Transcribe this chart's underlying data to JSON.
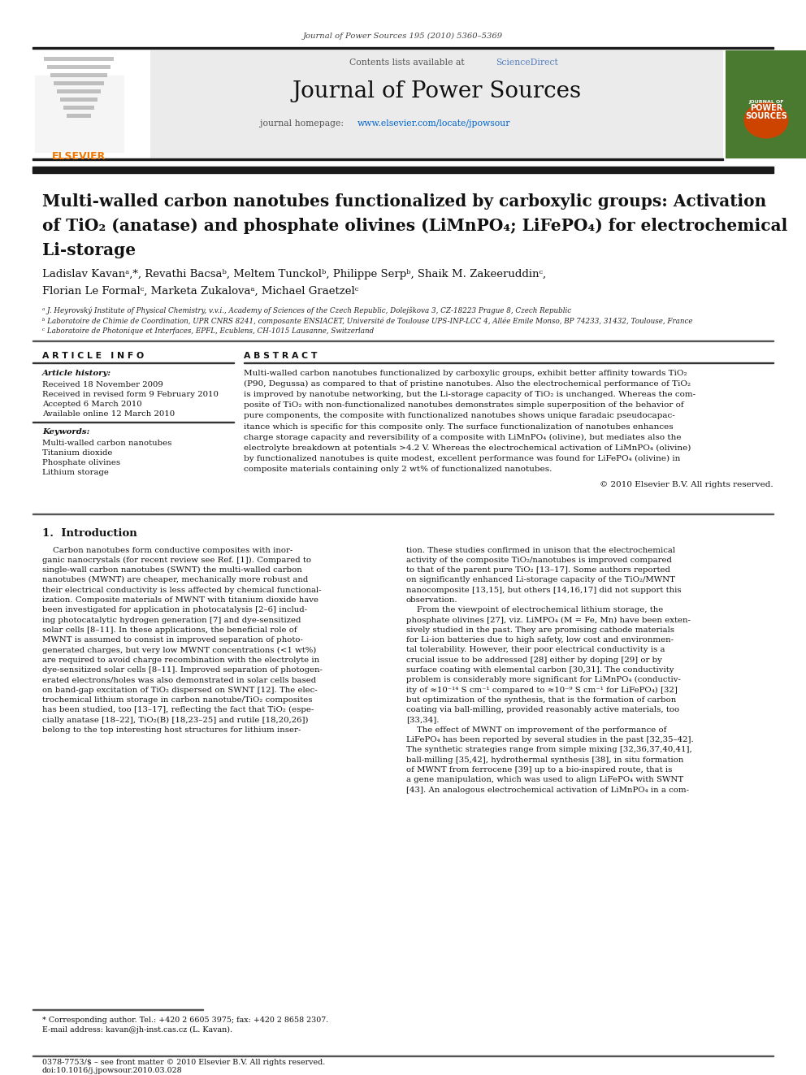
{
  "journal_ref": "Journal of Power Sources 195 (2010) 5360–5369",
  "contents_line": "Contents lists available at",
  "sciencedirect": "ScienceDirect",
  "journal_name": "Journal of Power Sources",
  "journal_homepage_prefix": "journal homepage: ",
  "journal_homepage_url": "www.elsevier.com/locate/jpowsour",
  "title_line1": "Multi-walled carbon nanotubes functionalized by carboxylic groups: Activation",
  "title_line2": "of TiO₂ (anatase) and phosphate olivines (LiMnPO₄; LiFePO₄) for electrochemical",
  "title_line3": "Li-storage",
  "authors": "Ladislav Kavanᵃ,*, Revathi Bacsaᵇ, Meltem Tunckolᵇ, Philippe Serpᵇ, Shaik M. Zakeeruddinᶜ,",
  "authors2": "Florian Le Formalᶜ, Marketa Zukalovaᵃ, Michael Graetzelᶜ",
  "affil_a": "ᵃ J. Heyrovský Institute of Physical Chemistry, v.v.i., Academy of Sciences of the Czech Republic, Dolejškova 3, CZ-18223 Prague 8, Czech Republic",
  "affil_b": "ᵇ Laboratoire de Chimie de Coordination, UPR CNRS 8241, composante ENSIACET, Université de Toulouse UPS-INP-LCC 4, Allée Emile Monso, BP 74233, 31432, Toulouse, France",
  "affil_c": "ᶜ Laboratoire de Photonique et Interfaces, EPFL, Ecublens, CH-1015 Lausanne, Switzerland",
  "article_info_header": "A R T I C L E   I N F O",
  "abstract_header": "A B S T R A C T",
  "article_history_label": "Article history:",
  "received": "Received 18 November 2009",
  "received_revised": "Received in revised form 9 February 2010",
  "accepted": "Accepted 6 March 2010",
  "available": "Available online 12 March 2010",
  "keywords_label": "Keywords:",
  "kw1": "Multi-walled carbon nanotubes",
  "kw2": "Titanium dioxide",
  "kw3": "Phosphate olivines",
  "kw4": "Lithium storage",
  "abstract_text": "Multi-walled carbon nanotubes functionalized by carboxylic groups, exhibit better affinity towards TiO₂\n(P90, Degussa) as compared to that of pristine nanotubes. Also the electrochemical performance of TiO₂\nis improved by nanotube networking, but the Li-storage capacity of TiO₂ is unchanged. Whereas the com-\nposite of TiO₂ with non-functionalized nanotubes demonstrates simple superposition of the behavior of\npure components, the composite with functionalized nanotubes shows unique faradaic pseudocapac-\nitance which is specific for this composite only. The surface functionalization of nanotubes enhances\ncharge storage capacity and reversibility of a composite with LiMnPO₄ (olivine), but mediates also the\nelectrolyte breakdown at potentials >4.2 V. Whereas the electrochemical activation of LiMnPO₄ (olivine)\nby functionalized nanotubes is quite modest, excellent performance was found for LiFePO₄ (olivine) in\ncomposite materials containing only 2 wt% of functionalized nanotubes.",
  "copyright": "© 2010 Elsevier B.V. All rights reserved.",
  "intro_header": "1.  Introduction",
  "intro_col1": "    Carbon nanotubes form conductive composites with inor-\nganic nanocrystals (for recent review see Ref. [1]). Compared to\nsingle-wall carbon nanotubes (SWNT) the multi-walled carbon\nnanotubes (MWNT) are cheaper, mechanically more robust and\ntheir electrical conductivity is less affected by chemical functional-\nization. Composite materials of MWNT with titanium dioxide have\nbeen investigated for application in photocatalysis [2–6] includ-\ning photocatalytic hydrogen generation [7] and dye-sensitized\nsolar cells [8–11]. In these applications, the beneficial role of\nMWNT is assumed to consist in improved separation of photo-\ngenerated charges, but very low MWNT concentrations (<1 wt%)\nare required to avoid charge recombination with the electrolyte in\ndye-sensitized solar cells [8–11]. Improved separation of photogen-\nerated electrons/holes was also demonstrated in solar cells based\non band-gap excitation of TiO₂ dispersed on SWNT [12]. The elec-\ntrochemical lithium storage in carbon nanotube/TiO₂ composites\nhas been studied, too [13–17], reflecting the fact that TiO₂ (espe-\ncially anatase [18–22], TiO₂(B) [18,23–25] and rutile [18,20,26])\nbelong to the top interesting host structures for lithium inser-",
  "intro_col2": "tion. These studies confirmed in unison that the electrochemical\nactivity of the composite TiO₂/nanotubes is improved compared\nto that of the parent pure TiO₂ [13–17]. Some authors reported\non significantly enhanced Li-storage capacity of the TiO₂/MWNT\nnanocomposite [13,15], but others [14,16,17] did not support this\nobservation.\n    From the viewpoint of electrochemical lithium storage, the\nphosphate olivines [27], viz. LiMPO₄ (M = Fe, Mn) have been exten-\nsively studied in the past. They are promising cathode materials\nfor Li-ion batteries due to high safety, low cost and environmen-\ntal tolerability. However, their poor electrical conductivity is a\ncrucial issue to be addressed [28] either by doping [29] or by\nsurface coating with elemental carbon [30,31]. The conductivity\nproblem is considerably more significant for LiMnPO₄ (conductiv-\nity of ≈10⁻¹⁴ S cm⁻¹ compared to ≈10⁻⁹ S cm⁻¹ for LiFePO₄) [32]\nbut optimization of the synthesis, that is the formation of carbon\ncoating via ball-milling, provided reasonably active materials, too\n[33,34].\n    The effect of MWNT on improvement of the performance of\nLiFePO₄ has been reported by several studies in the past [32,35–42].\nThe synthetic strategies range from simple mixing [32,36,37,40,41],\nball-milling [35,42], hydrothermal synthesis [38], in situ formation\nof MWNT from ferrocene [39] up to a bio-inspired route, that is\na gene manipulation, which was used to align LiFePO₄ with SWNT\n[43]. An analogous electrochemical activation of LiMnPO₄ in a com-",
  "footnote1": "* Corresponding author. Tel.: +420 2 6605 3975; fax: +420 2 8658 2307.",
  "footnote2": "E-mail address: kavan@jh-inst.cas.cz (L. Kavan).",
  "footer_issn": "0378-7753/$ – see front matter © 2010 Elsevier B.V. All rights reserved.",
  "footer_doi": "doi:10.1016/j.jpowsour.2010.03.028",
  "bg_color": "#ffffff",
  "dark_bar": "#1a1a1a",
  "scidir_blue": "#5580c0",
  "elsevier_orange": "#f07800",
  "elsevier_green": "#4a7a30",
  "link_blue": "#0066cc"
}
